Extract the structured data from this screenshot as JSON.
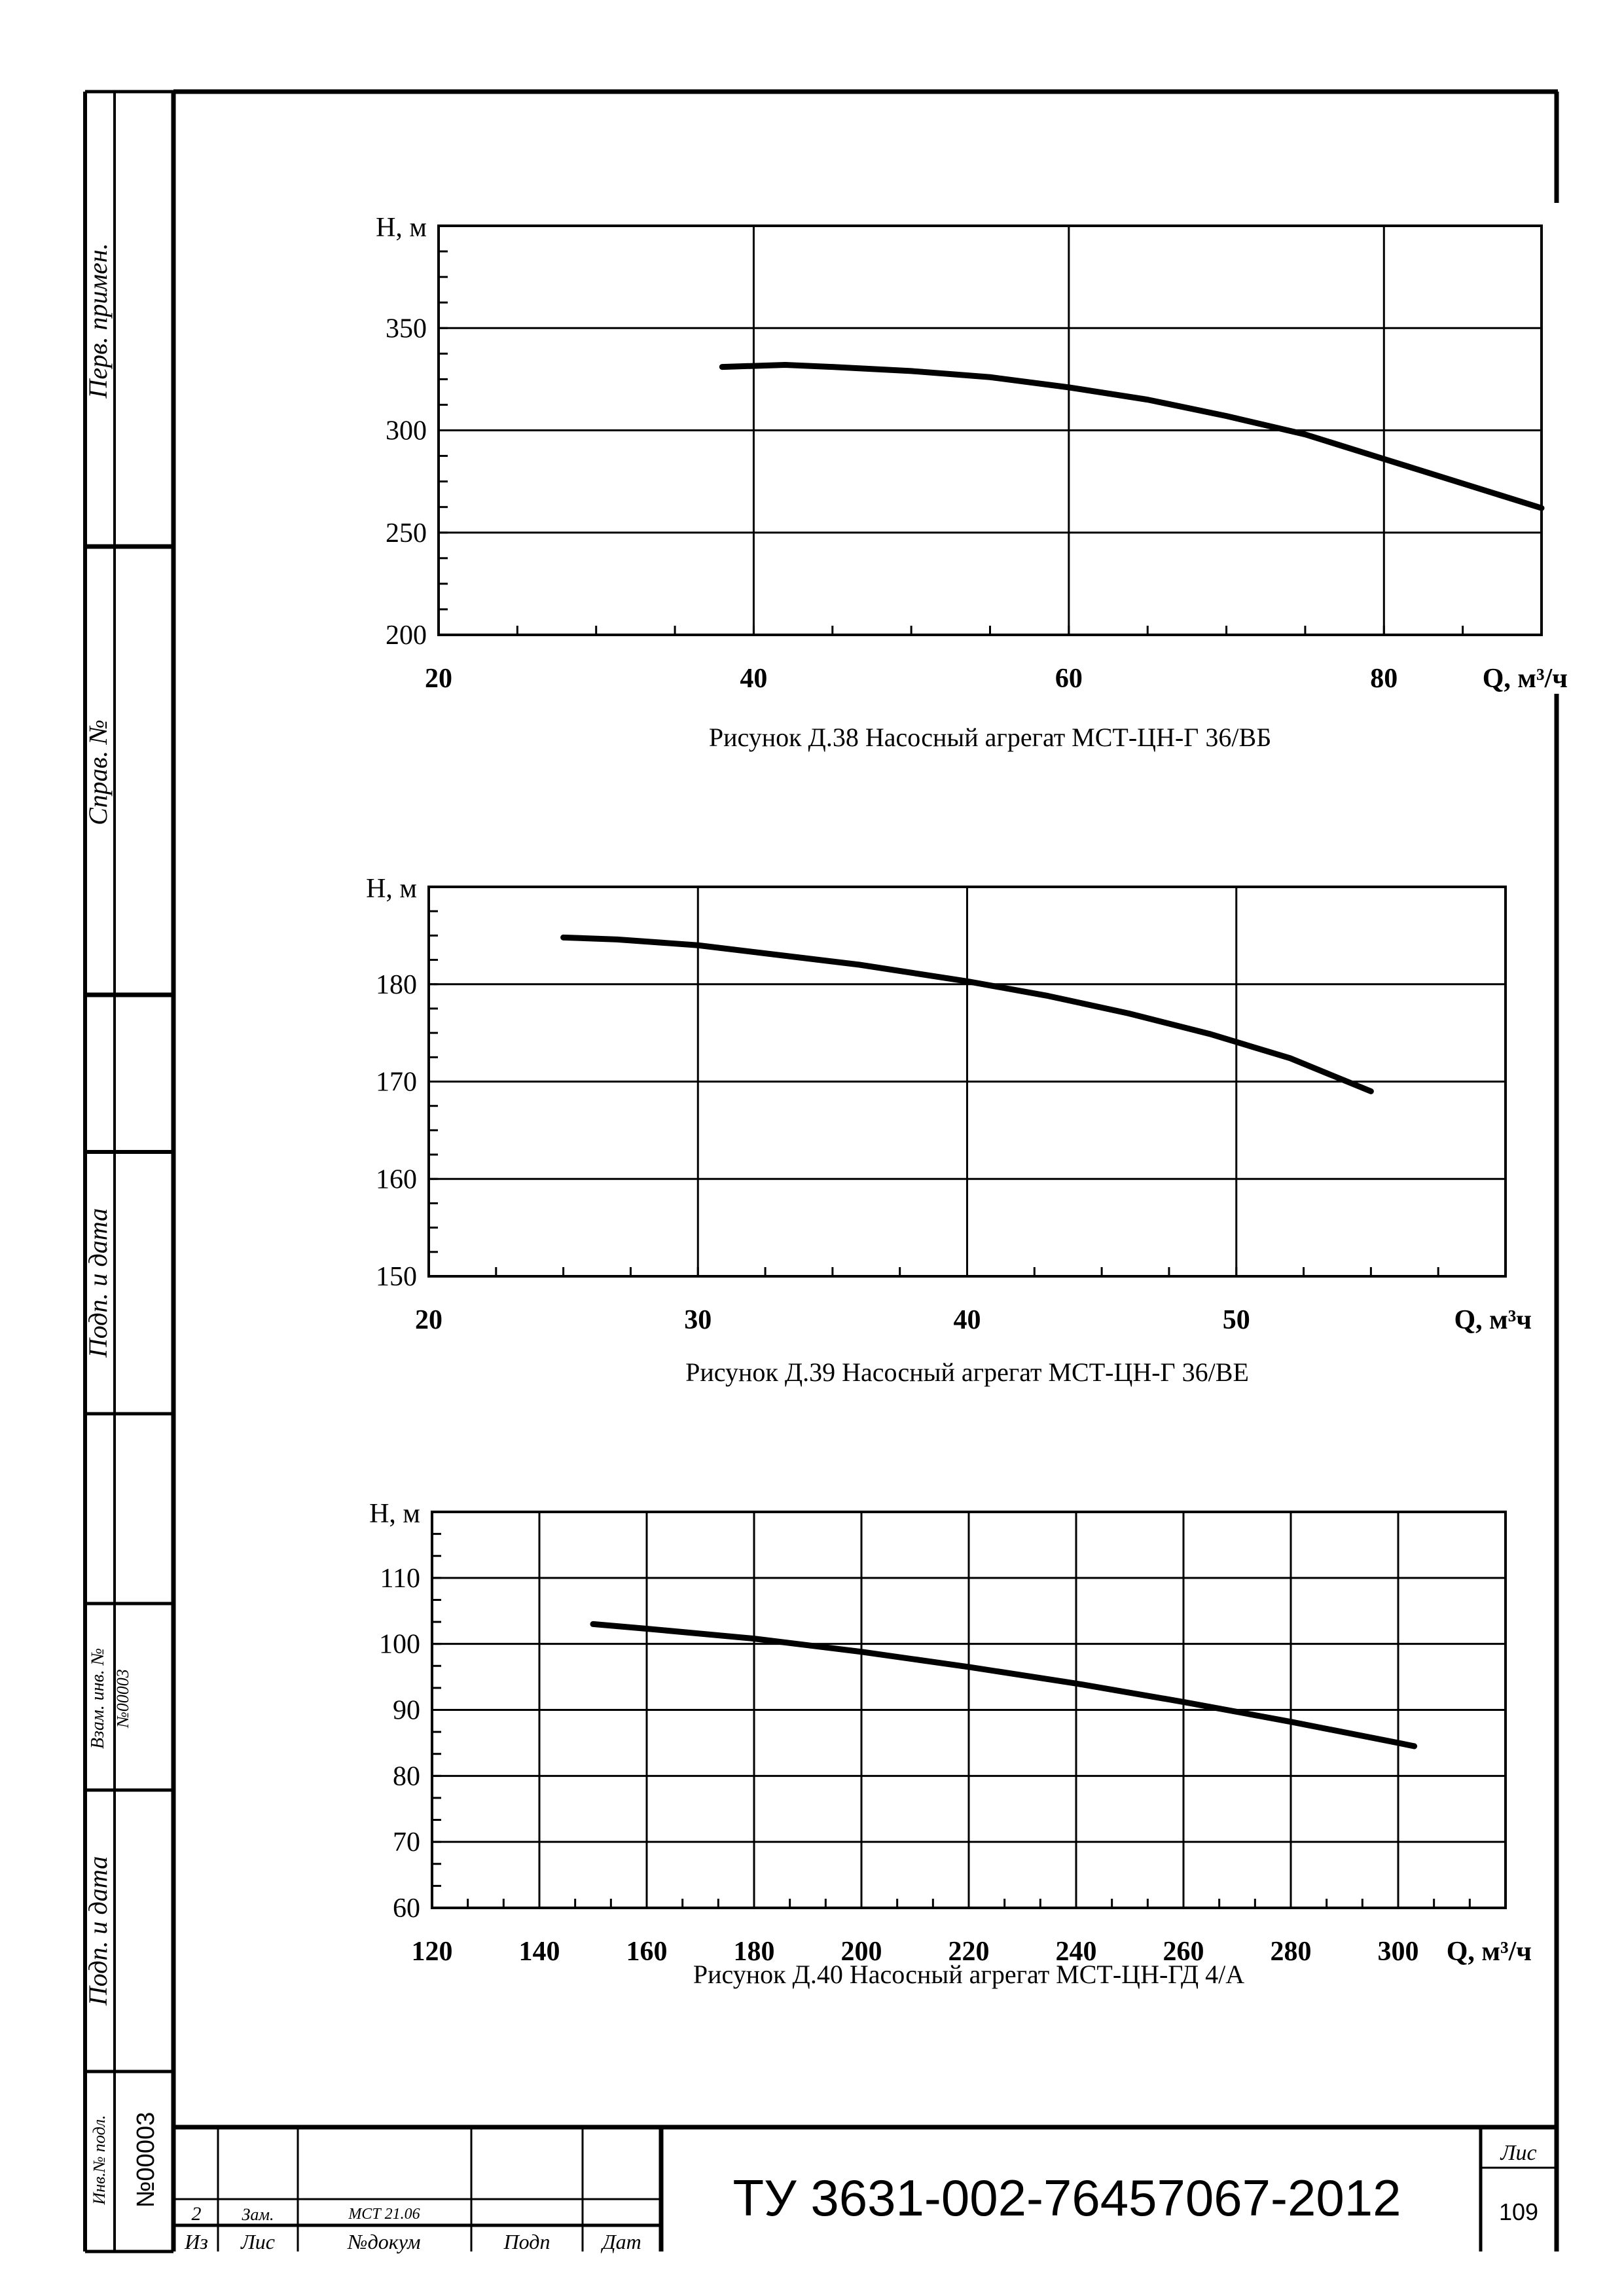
{
  "sidebar": {
    "labels": [
      "Перв. примен.",
      "Справ. №",
      "Подп. и дата",
      "Взам. инв. №",
      "Подп. и дата",
      "Инв.№ подл."
    ],
    "vzam_inv_value": "№00003",
    "inv_podl_value": "№00003"
  },
  "title_block": {
    "doc_code": "ТУ 3631-002-76457067-2012",
    "sheet_label": "Лис",
    "sheet_number": "109",
    "row_change": {
      "izm": "2",
      "list": "Зам.",
      "doc": "МСТ 21.06"
    },
    "headers": [
      "Из",
      "Лис",
      "№докум",
      "Подп",
      "Дат"
    ]
  },
  "chart_data": [
    {
      "type": "line",
      "title": "Рисунок Д.38 Насосный агрегат МСТ-ЦН-Г 36/ВБ",
      "xlabel": "Q, м³/ч",
      "ylabel": "Н, м",
      "xlim": [
        20,
        90
      ],
      "ylim": [
        200,
        400
      ],
      "xticks": [
        20,
        40,
        60,
        80
      ],
      "yticks": [
        200,
        250,
        300,
        350
      ],
      "x": [
        38,
        42,
        45,
        50,
        55,
        60,
        65,
        70,
        75,
        80,
        85,
        90
      ],
      "y": [
        331,
        332,
        331,
        329,
        326,
        321,
        315,
        307,
        298,
        286,
        274,
        262
      ]
    },
    {
      "type": "line",
      "title": "Рисунок Д.39 Насосный агрегат МСТ-ЦН-Г 36/ВЕ",
      "xlabel": "Q, м³ч",
      "ylabel": "Н, м",
      "xlim": [
        20,
        60
      ],
      "ylim": [
        150,
        190
      ],
      "xticks": [
        20,
        30,
        40,
        50
      ],
      "yticks": [
        150,
        160,
        170,
        180
      ],
      "x": [
        25,
        27,
        30,
        33,
        36,
        40,
        43,
        46,
        49,
        52,
        55
      ],
      "y": [
        184.8,
        184.6,
        184.0,
        183.0,
        182.0,
        180.3,
        178.8,
        177.0,
        174.9,
        172.4,
        169.0
      ]
    },
    {
      "type": "line",
      "title": "Рисунок Д.40 Насосный агрегат МСТ-ЦН-ГД 4/А",
      "xlabel": "Q, м³/ч",
      "ylabel": "Н, м",
      "xlim": [
        120,
        320
      ],
      "ylim": [
        60,
        120
      ],
      "xticks": [
        120,
        140,
        160,
        180,
        200,
        220,
        240,
        260,
        280,
        300
      ],
      "yticks": [
        60,
        70,
        80,
        90,
        100,
        110
      ],
      "x": [
        150,
        160,
        180,
        200,
        220,
        240,
        260,
        280,
        300,
        303
      ],
      "y": [
        103,
        102.3,
        100.8,
        98.8,
        96.5,
        94.0,
        91.2,
        88.2,
        85.0,
        84.5
      ]
    }
  ]
}
